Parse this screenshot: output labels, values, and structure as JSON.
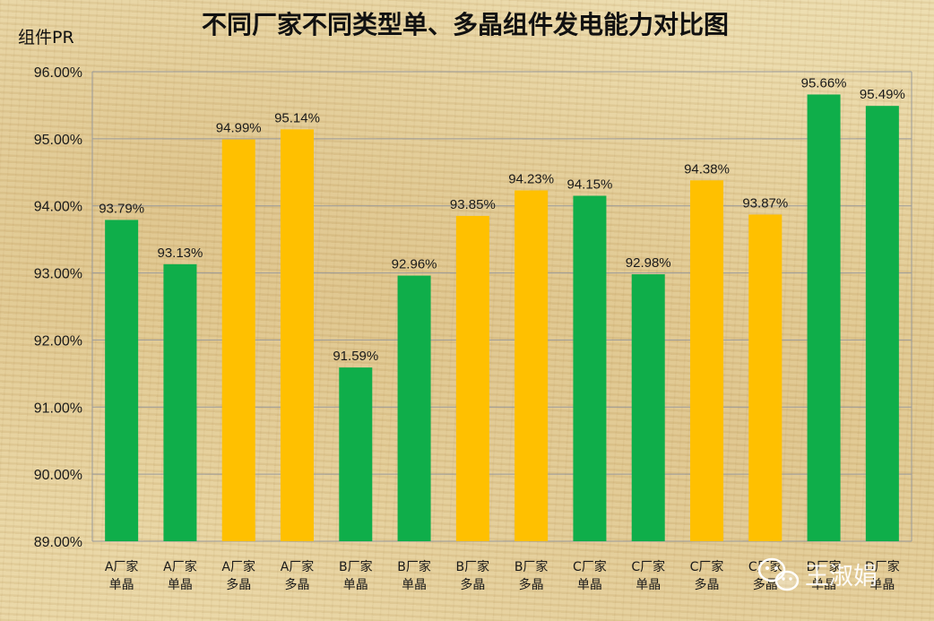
{
  "chart_data": {
    "type": "bar",
    "title": "不同厂家不同类型单、多晶组件发电能力对比图",
    "ylabel": "组件PR",
    "ylim": [
      89,
      96
    ],
    "yticks": [
      89,
      90,
      91,
      92,
      93,
      94,
      95,
      96
    ],
    "ytick_labels": [
      "89.00%",
      "90.00%",
      "91.00%",
      "92.00%",
      "93.00%",
      "94.00%",
      "95.00%",
      "96.00%"
    ],
    "grid": true,
    "categories": [
      [
        "A厂家",
        "单晶"
      ],
      [
        "A厂家",
        "单晶"
      ],
      [
        "A厂家",
        "多晶"
      ],
      [
        "A厂家",
        "多晶"
      ],
      [
        "B厂家",
        "单晶"
      ],
      [
        "B厂家",
        "单晶"
      ],
      [
        "B厂家",
        "多晶"
      ],
      [
        "B厂家",
        "多晶"
      ],
      [
        "C厂家",
        "单晶"
      ],
      [
        "C厂家",
        "单晶"
      ],
      [
        "C厂家",
        "多晶"
      ],
      [
        "C厂家",
        "多晶"
      ],
      [
        "D厂家",
        "单晶"
      ],
      [
        "D厂家",
        "单晶"
      ]
    ],
    "values": [
      93.79,
      93.13,
      94.99,
      95.14,
      91.59,
      92.96,
      93.85,
      94.23,
      94.15,
      92.98,
      94.38,
      93.87,
      95.66,
      95.49
    ],
    "labels": [
      "93.79%",
      "93.13%",
      "94.99%",
      "95.14%",
      "91.59%",
      "92.96%",
      "93.85%",
      "94.23%",
      "94.15%",
      "92.98%",
      "94.38%",
      "93.87%",
      "95.66%",
      "95.49%"
    ],
    "bar_colors": [
      "#0fae4a",
      "#0fae4a",
      "#ffc000",
      "#ffc000",
      "#0fae4a",
      "#0fae4a",
      "#ffc000",
      "#ffc000",
      "#0fae4a",
      "#0fae4a",
      "#ffc000",
      "#ffc000",
      "#0fae4a",
      "#0fae4a"
    ]
  },
  "watermark": {
    "text": "王淑娟",
    "icon": "wechat-icon"
  },
  "colors": {
    "monocrystalline": "#0fae4a",
    "polycrystalline": "#ffc000",
    "grid": "#9a9a9a",
    "text": "#1a1a1a"
  }
}
